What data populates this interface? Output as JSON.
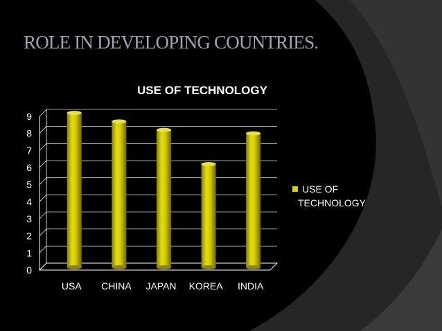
{
  "slide": {
    "title": "ROLE IN DEVELOPING COUNTRIES."
  },
  "colors": {
    "background": "#000000",
    "swoosh": "#2b2b2b",
    "swoosh_light": "#3a3a3a",
    "title": "#a3a3b5",
    "bar": "#d8d000",
    "bar_dark": "#8c8600",
    "text": "#ffffff",
    "grid": "#ffffff"
  },
  "chart_data": {
    "type": "bar",
    "style": "3d-cylinder",
    "title": "USE OF TECHNOLOGY",
    "categories": [
      "USA",
      "CHINA",
      "JAPAN",
      "KOREA",
      "INDIA"
    ],
    "series": [
      {
        "name": "USE OF TECHNOLOGY",
        "values": [
          9,
          8.5,
          8,
          6,
          7.8
        ]
      }
    ],
    "ylim": [
      0,
      9
    ],
    "yticks": [
      "0",
      "1",
      "2",
      "3",
      "4",
      "5",
      "6",
      "7",
      "8",
      "9"
    ],
    "grid": true,
    "legend": {
      "position": "right",
      "label_lines": [
        "USE OF",
        "TECHNOLOGY"
      ]
    }
  }
}
